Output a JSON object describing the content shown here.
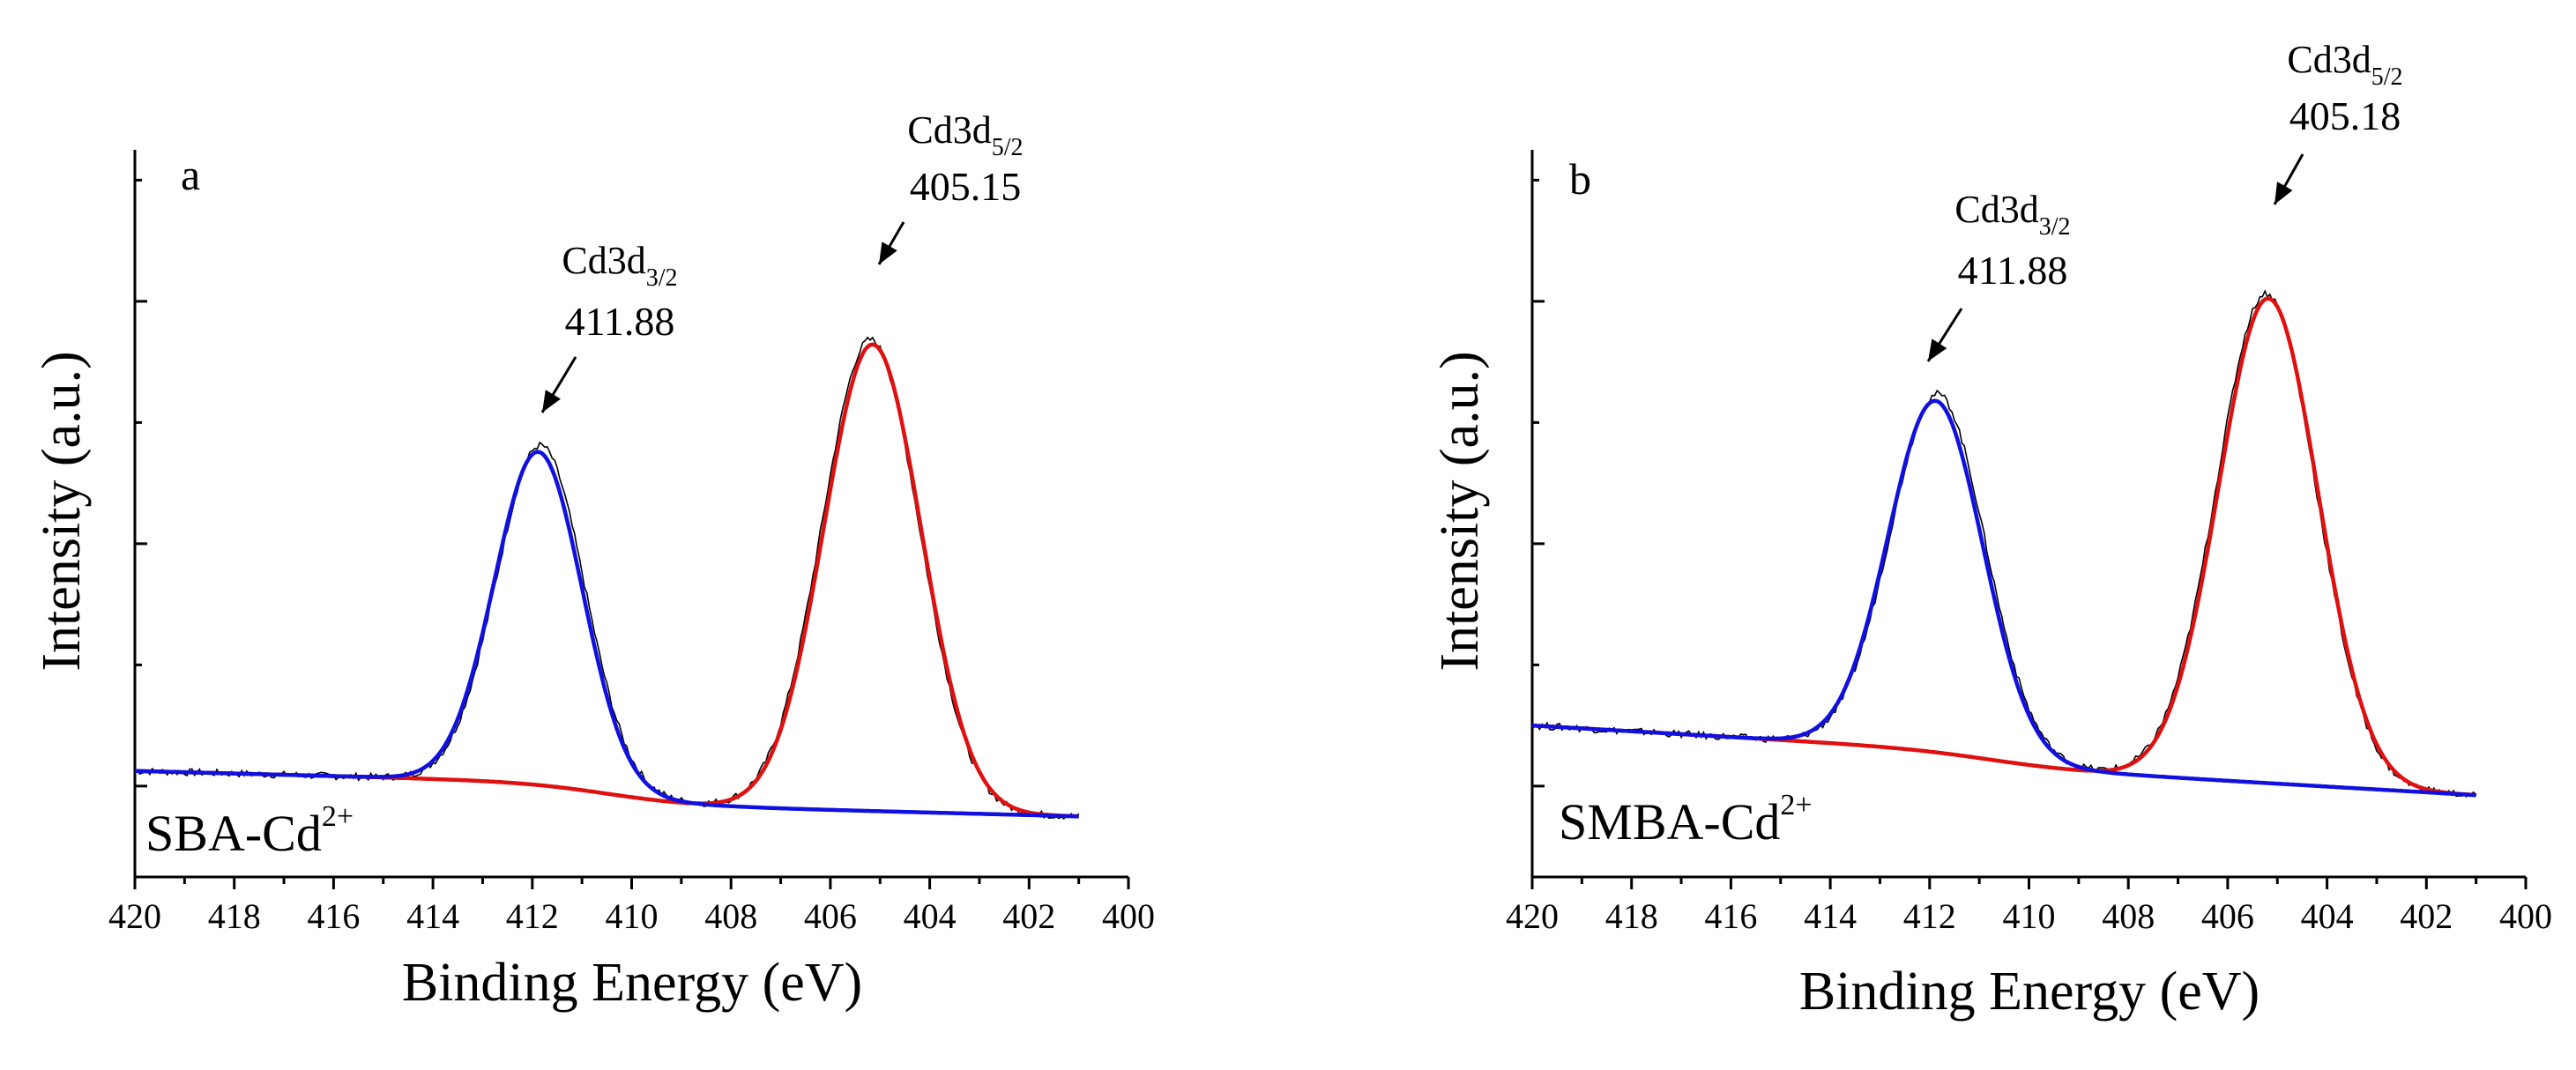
{
  "chart_data": [
    {
      "type": "line",
      "panel_label": "a",
      "sample": {
        "text": "SBA-Cd",
        "sup": "2+"
      },
      "xlabel": "Binding Energy (eV)",
      "ylabel": "Intensity (a.u.)",
      "xlim": [
        420,
        400
      ],
      "xticks": [
        "420",
        "418",
        "416",
        "414",
        "412",
        "410",
        "408",
        "406",
        "404",
        "402",
        "400"
      ],
      "ylim": [
        -15,
        105
      ],
      "peaks": [
        {
          "name": "Cd3d",
          "sub": "3/2",
          "center": 411.88,
          "label": "411.88",
          "height": 55,
          "sigma": 0.88,
          "color": "#1010e0"
        },
        {
          "name": "Cd3d",
          "sub": "5/2",
          "center": 405.15,
          "label": "405.15",
          "height": 77,
          "sigma": 0.98,
          "color": "#e01010"
        }
      ],
      "baseline": {
        "x_start": 420,
        "x_end": 401,
        "y_start": 2.5,
        "y_end": -1.5,
        "step_at": 410.5,
        "step_size": 3.5
      },
      "series": [
        {
          "name": "measured",
          "color": "#000000"
        },
        {
          "name": "Cd3d3/2 fit",
          "color": "#1010e0"
        },
        {
          "name": "Cd3d5/2 fit",
          "color": "#e01010"
        }
      ]
    },
    {
      "type": "line",
      "panel_label": "b",
      "sample": {
        "text": "SMBA-Cd",
        "sup": "2+"
      },
      "xlabel": "Binding Energy (eV)",
      "ylabel": "Intensity (a.u.)",
      "xlim": [
        420,
        400
      ],
      "xticks": [
        "420",
        "418",
        "416",
        "414",
        "412",
        "410",
        "408",
        "406",
        "404",
        "402",
        "400"
      ],
      "ylim": [
        -15,
        105
      ],
      "peaks": [
        {
          "name": "Cd3d",
          "sub": "3/2",
          "center": 411.88,
          "label": "411.88",
          "height": 58,
          "sigma": 0.95,
          "color": "#1010e0"
        },
        {
          "name": "Cd3d",
          "sub": "5/2",
          "center": 405.18,
          "label": "405.18",
          "height": 80,
          "sigma": 1.0,
          "color": "#e01010"
        }
      ],
      "baseline": {
        "x_start": 420,
        "x_end": 401,
        "y_start": 10,
        "y_end": 1,
        "step_at": 410.8,
        "step_size": 2.5
      },
      "series": [
        {
          "name": "measured",
          "color": "#000000"
        },
        {
          "name": "Cd3d3/2 fit",
          "color": "#1010e0"
        },
        {
          "name": "Cd3d5/2 fit",
          "color": "#e01010"
        }
      ]
    }
  ]
}
